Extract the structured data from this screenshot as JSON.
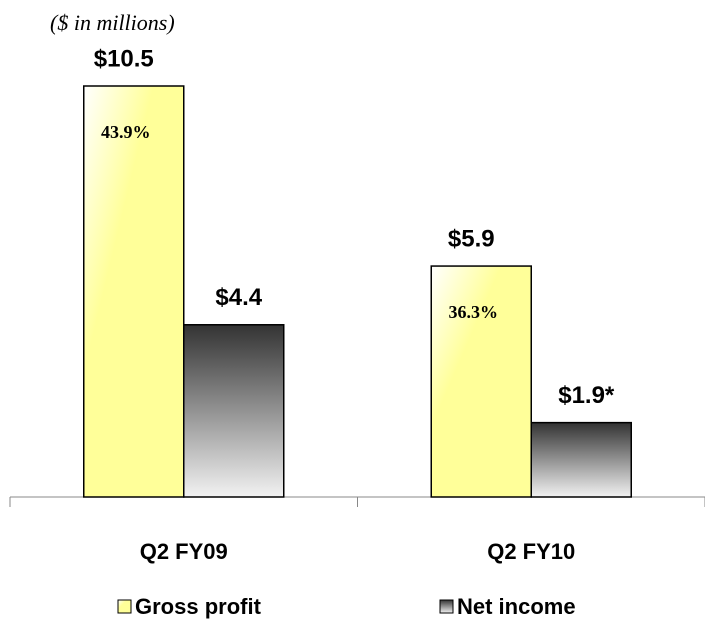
{
  "chart_data": {
    "type": "bar",
    "subtitle": "($ in millions)",
    "categories": [
      "Q2 FY09",
      "Q2 FY10"
    ],
    "series": [
      {
        "name": "Gross profit",
        "color": "#ffff99",
        "values": [
          10.5,
          5.9
        ],
        "value_labels": [
          "$10.5",
          "$5.9"
        ],
        "annotations": [
          "43.9%",
          "36.3%"
        ]
      },
      {
        "name": "Net income",
        "color": "#333333",
        "values": [
          4.4,
          1.9
        ],
        "value_labels": [
          "$4.4",
          "$1.9*"
        ]
      }
    ]
  }
}
